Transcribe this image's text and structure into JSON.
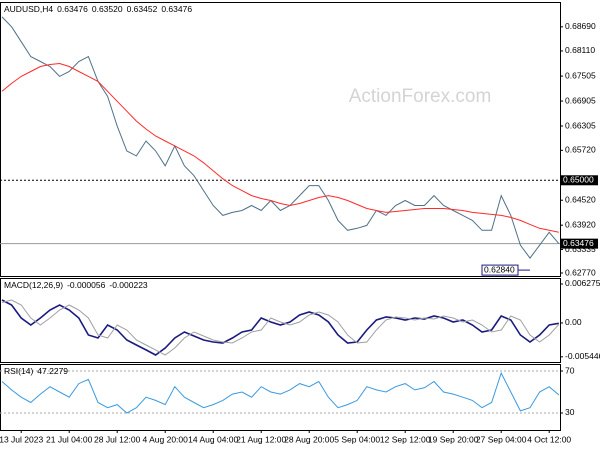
{
  "chart_data": [
    {
      "type": "line",
      "title": "AUDUSD,H4",
      "watermark": "ActionForex.com",
      "readouts": [
        {
          "value": 0.63476,
          "label": "0.63476"
        },
        {
          "value": 0.6352,
          "label": "0.63520"
        },
        {
          "value": 0.63452,
          "label": "0.63452"
        },
        {
          "value": 0.63476,
          "label": "0.63476"
        }
      ],
      "ylim": [
        0.62698,
        0.69287
      ],
      "yticks": [
        {
          "value": 0.6869,
          "label": "0.68690"
        },
        {
          "value": 0.6811,
          "label": "0.68110"
        },
        {
          "value": 0.67505,
          "label": "0.67505"
        },
        {
          "value": 0.66905,
          "label": "0.66905"
        },
        {
          "value": 0.66305,
          "label": "0.66305"
        },
        {
          "value": 0.6572,
          "label": "0.65720"
        },
        {
          "value": 0.6452,
          "label": "0.64520"
        },
        {
          "value": 0.6392,
          "label": "0.63920"
        },
        {
          "value": 0.63335,
          "label": "0.63335"
        },
        {
          "value": 0.6277,
          "label": "0.62770"
        }
      ],
      "levels": [
        {
          "value": 0.65,
          "label": "0.65000",
          "style": "dashed"
        },
        {
          "value": 0.63476,
          "label": "0.63476",
          "style": "solid"
        }
      ],
      "low_marker": {
        "value": 0.6284,
        "label": "0.62840"
      },
      "series": [
        {
          "color": "#4f7188",
          "values": [
            0.68929,
            0.6869,
            0.68332,
            0.67974,
            0.67855,
            0.67735,
            0.67497,
            0.67616,
            0.67855,
            0.67974,
            0.67377,
            0.67019,
            0.66303,
            0.65707,
            0.65587,
            0.65945,
            0.65707,
            0.65349,
            0.65826,
            0.65349,
            0.6511,
            0.64752,
            0.64394,
            0.64155,
            0.64227,
            0.64274,
            0.64394,
            0.64274,
            0.64513,
            0.64274,
            0.64394,
            0.64632,
            0.64871,
            0.64871,
            0.64513,
            0.64036,
            0.63797,
            0.63845,
            0.63916,
            0.64274,
            0.64155,
            0.64394,
            0.64513,
            0.64394,
            0.64394,
            0.64632,
            0.64394,
            0.64274,
            0.64155,
            0.64036,
            0.63797,
            0.63797,
            0.64632,
            0.64155,
            0.63439,
            0.63129,
            0.63439,
            0.63749,
            0.63476
          ]
        },
        {
          "color": "#ff2a2a",
          "values": [
            0.67139,
            0.6733,
            0.67497,
            0.67616,
            0.67735,
            0.67783,
            0.67807,
            0.67735,
            0.67616,
            0.67497,
            0.67377,
            0.67139,
            0.669,
            0.66661,
            0.66423,
            0.66232,
            0.66065,
            0.65945,
            0.65826,
            0.65707,
            0.65587,
            0.6542,
            0.65229,
            0.65038,
            0.64871,
            0.64752,
            0.64632,
            0.64561,
            0.64513,
            0.64441,
            0.64394,
            0.64441,
            0.64513,
            0.64585,
            0.64632,
            0.64585,
            0.64513,
            0.64418,
            0.64322,
            0.64274,
            0.64227,
            0.6425,
            0.64274,
            0.64298,
            0.64322,
            0.64322,
            0.64322,
            0.64298,
            0.64274,
            0.64227,
            0.64203,
            0.64179,
            0.64155,
            0.64107,
            0.64036,
            0.6394,
            0.63845,
            0.63797,
            0.63749
          ]
        }
      ]
    },
    {
      "type": "line",
      "title": "MACD(12,26,9)",
      "readouts": [
        -5.6e-05,
        -0.000223
      ],
      "ylim": [
        -0.00628,
        0.00724
      ],
      "yticks": [
        0.006275,
        {
          "value": 0,
          "label": "0.00"
        },
        -0.005446
      ],
      "series": [
        {
          "color": "#1a1a80",
          "values": [
            0.0037,
            0.0029,
            0.0008,
            -0.00032,
            0.0008,
            0.00209,
            0.0029,
            0.00209,
            0.0008,
            -0.00193,
            -0.00241,
            -0.00032,
            -0.00113,
            -0.00274,
            -0.00354,
            -0.00434,
            -0.00515,
            -0.00402,
            -0.00241,
            -0.00145,
            -0.00209,
            -0.00274,
            -0.00306,
            -0.00322,
            -0.00241,
            -0.00145,
            -0.00113,
            0.0008,
            0.00016,
            -0.00032,
            0.00016,
            0.00129,
            0.00177,
            0.00129,
            0.00016,
            -0.00193,
            -0.00322,
            -0.00306,
            -0.00113,
            0.00048,
            0.00097,
            0.0008,
            0.00048,
            0.0008,
            0.00064,
            0.00113,
            0.0008,
            0.00016,
            0.00048,
            -0.00032,
            -0.00145,
            -0.00113,
            0.00113,
            0.00048,
            -0.00193,
            -0.00306,
            -0.00193,
            -0.00032,
            -5.6e-05
          ]
        },
        {
          "color": "#a0a0a0",
          "values": [
            0.0033,
            0.0037,
            0.0029,
            0.0008,
            -0.00032,
            0.0008,
            0.00209,
            0.0029,
            0.00209,
            0.0008,
            -0.00193,
            -0.00241,
            -0.00032,
            -0.00113,
            -0.00274,
            -0.00354,
            -0.00434,
            -0.00515,
            -0.00402,
            -0.00241,
            -0.00145,
            -0.00209,
            -0.00274,
            -0.00306,
            -0.00322,
            -0.00241,
            -0.00145,
            -0.00113,
            0.0008,
            0.00016,
            -0.00032,
            0.00016,
            0.00129,
            0.00177,
            0.00129,
            0.00016,
            -0.00193,
            -0.00322,
            -0.00306,
            -0.00113,
            0.00048,
            0.00097,
            0.0008,
            0.00048,
            0.0008,
            0.00064,
            0.00113,
            0.0008,
            0.00016,
            0.00048,
            -0.00032,
            -0.00145,
            -0.00113,
            0.00113,
            0.00048,
            -0.00193,
            -0.00306,
            -0.00193,
            -0.000223
          ]
        }
      ]
    },
    {
      "type": "line",
      "title": "RSI(14)",
      "readouts": [
        47.2279
      ],
      "ylim": [
        13.8,
        76.67
      ],
      "yticks": [
        70,
        30
      ],
      "grid": "dashed",
      "categories": [
        null,
        null,
        "13 Jul 2023",
        null,
        null,
        null,
        null,
        "21 Jul 04:00",
        null,
        null,
        null,
        null,
        "28 Jul 12:00",
        null,
        null,
        null,
        null,
        "4 Aug 20:00",
        null,
        null,
        null,
        null,
        "14 Aug 04:00",
        null,
        null,
        null,
        null,
        "21 Aug 12:00",
        null,
        null,
        null,
        null,
        "28 Aug 20:00",
        null,
        null,
        null,
        null,
        "5 Sep 04:00",
        null,
        null,
        null,
        null,
        "12 Sep 12:00",
        null,
        null,
        null,
        null,
        "19 Sep 20:00",
        null,
        null,
        null,
        null,
        "27 Sep 04:00",
        null,
        null,
        null,
        null,
        "4 Oct 12:00",
        null
      ],
      "series": [
        {
          "color": "#3a9ae0",
          "values": [
            60,
            52,
            45,
            40,
            48,
            55,
            50,
            45,
            58,
            62,
            40,
            35,
            38,
            30,
            35,
            45,
            42,
            38,
            55,
            45,
            40,
            35,
            38,
            42,
            48,
            50,
            45,
            55,
            50,
            48,
            52,
            58,
            55,
            60,
            45,
            35,
            38,
            42,
            55,
            52,
            50,
            55,
            58,
            52,
            54,
            60,
            50,
            48,
            45,
            42,
            35,
            40,
            68,
            50,
            32,
            35,
            50,
            55,
            47.2279
          ]
        }
      ]
    }
  ]
}
